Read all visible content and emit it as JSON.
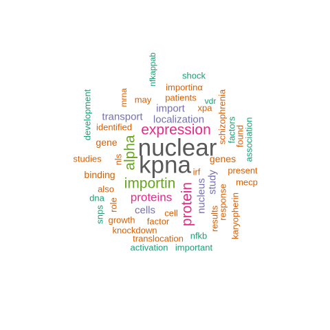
{
  "palette": {
    "gray": "#595959",
    "teal": "#1b9e77",
    "orange": "#d95f02",
    "purple": "#7570b3",
    "magenta": "#e7298a",
    "green": "#66a61e"
  },
  "words": [
    {
      "text": "nuclear",
      "color": "gray"
    },
    {
      "text": "kpna",
      "color": "gray"
    },
    {
      "text": "expression",
      "color": "magenta"
    },
    {
      "text": "importin",
      "color": "green"
    },
    {
      "text": "alpha",
      "color": "green"
    },
    {
      "text": "protein",
      "color": "magenta"
    },
    {
      "text": "proteins",
      "color": "magenta"
    },
    {
      "text": "localization",
      "color": "purple"
    },
    {
      "text": "transport",
      "color": "purple"
    },
    {
      "text": "import",
      "color": "purple"
    },
    {
      "text": "cells",
      "color": "purple"
    },
    {
      "text": "nucleus",
      "color": "purple"
    },
    {
      "text": "study",
      "color": "purple"
    },
    {
      "text": "genes",
      "color": "orange"
    },
    {
      "text": "gene",
      "color": "orange"
    },
    {
      "text": "binding",
      "color": "orange"
    },
    {
      "text": "studies",
      "color": "orange"
    },
    {
      "text": "nls",
      "color": "orange"
    },
    {
      "text": "also",
      "color": "orange"
    },
    {
      "text": "cell",
      "color": "orange"
    },
    {
      "text": "factor",
      "color": "orange"
    },
    {
      "text": "growth",
      "color": "orange"
    },
    {
      "text": "knockdown",
      "color": "orange"
    },
    {
      "text": "translocation",
      "color": "orange"
    },
    {
      "text": "identified",
      "color": "orange"
    },
    {
      "text": "may",
      "color": "orange"
    },
    {
      "text": "patients",
      "color": "orange"
    },
    {
      "text": "importinα",
      "color": "orange"
    },
    {
      "text": "xpa",
      "color": "orange"
    },
    {
      "text": "mrna",
      "color": "orange"
    },
    {
      "text": "schizophrenia",
      "color": "orange"
    },
    {
      "text": "found",
      "color": "orange"
    },
    {
      "text": "present",
      "color": "orange"
    },
    {
      "text": "mecp",
      "color": "orange"
    },
    {
      "text": "response",
      "color": "orange"
    },
    {
      "text": "karyopherin",
      "color": "orange"
    },
    {
      "text": "results",
      "color": "orange"
    },
    {
      "text": "role",
      "color": "orange"
    },
    {
      "text": "irf",
      "color": "orange"
    },
    {
      "text": "shock",
      "color": "teal"
    },
    {
      "text": "nfkappab",
      "color": "teal"
    },
    {
      "text": "development",
      "color": "teal"
    },
    {
      "text": "vdr",
      "color": "teal"
    },
    {
      "text": "factors",
      "color": "teal"
    },
    {
      "text": "association",
      "color": "teal"
    },
    {
      "text": "dna",
      "color": "teal"
    },
    {
      "text": "snps",
      "color": "teal"
    },
    {
      "text": "nfkb",
      "color": "teal"
    },
    {
      "text": "activation",
      "color": "teal"
    },
    {
      "text": "important",
      "color": "teal"
    }
  ]
}
